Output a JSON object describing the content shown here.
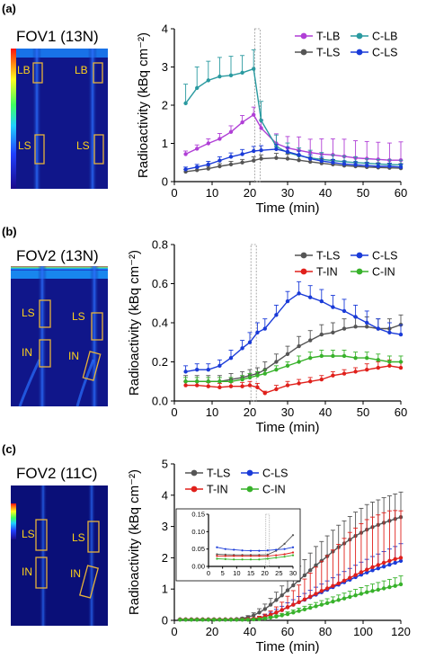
{
  "chart_data": [
    {
      "panel": "(a)",
      "fov_title": "FOV1",
      "fov_isotope": "(13N)",
      "roi_labels": [
        "LB",
        "LB",
        "LS",
        "LS"
      ],
      "type": "line",
      "xlabel": "Time (min)",
      "ylabel": "Radioactivity (kBq cm⁻²)",
      "xlim": [
        0,
        60
      ],
      "ylim": [
        0,
        4
      ],
      "xticks": [
        0,
        10,
        20,
        30,
        40,
        50,
        60
      ],
      "yticks": [
        0,
        1,
        2,
        3,
        4
      ],
      "vline": 22,
      "legend_position": "top-right",
      "x": [
        3,
        6,
        9,
        12,
        15,
        18,
        21,
        23,
        27,
        30,
        33,
        36,
        39,
        42,
        45,
        48,
        51,
        54,
        57,
        60
      ],
      "series": [
        {
          "name": "T-LB",
          "color": "#b03fd6",
          "marker": "circle",
          "values": [
            0.72,
            0.86,
            1.0,
            1.12,
            1.3,
            1.55,
            1.75,
            1.4,
            1.0,
            0.88,
            0.82,
            0.76,
            0.72,
            0.7,
            0.66,
            0.62,
            0.6,
            0.58,
            0.56,
            0.56
          ],
          "errors": [
            0.08,
            0.1,
            0.12,
            0.14,
            0.16,
            0.18,
            0.2,
            0.22,
            0.25,
            0.3,
            0.35,
            0.35,
            0.4,
            0.42,
            0.45,
            0.45,
            0.45,
            0.45,
            0.45,
            0.48
          ]
        },
        {
          "name": "C-LB",
          "color": "#2a9aa0",
          "marker": "circle",
          "values": [
            2.05,
            2.45,
            2.65,
            2.75,
            2.78,
            2.85,
            2.95,
            1.6,
            0.92,
            0.76,
            0.68,
            0.62,
            0.58,
            0.55,
            0.52,
            0.5,
            0.48,
            0.46,
            0.45,
            0.44
          ],
          "errors": [
            0.5,
            0.55,
            0.5,
            0.5,
            0.5,
            0.45,
            0.5,
            0.5,
            0.3,
            0.25,
            0.2,
            0.2,
            0.18,
            0.15,
            0.15,
            0.15,
            0.12,
            0.12,
            0.12,
            0.12
          ]
        },
        {
          "name": "T-LS",
          "color": "#555555",
          "marker": "circle",
          "values": [
            0.26,
            0.3,
            0.34,
            0.4,
            0.45,
            0.5,
            0.55,
            0.6,
            0.62,
            0.6,
            0.56,
            0.52,
            0.48,
            0.45,
            0.42,
            0.4,
            0.38,
            0.37,
            0.36,
            0.35
          ],
          "errors": [
            0.06,
            0.06,
            0.06,
            0.07,
            0.08,
            0.08,
            0.1,
            0.1,
            0.12,
            0.12,
            0.12,
            0.12,
            0.12,
            0.12,
            0.12,
            0.12,
            0.12,
            0.12,
            0.12,
            0.12
          ]
        },
        {
          "name": "C-LS",
          "color": "#1a3bd8",
          "marker": "circle",
          "values": [
            0.32,
            0.38,
            0.45,
            0.55,
            0.65,
            0.72,
            0.8,
            0.82,
            0.85,
            0.78,
            0.7,
            0.6,
            0.54,
            0.5,
            0.46,
            0.44,
            0.42,
            0.4,
            0.4,
            0.38
          ],
          "errors": [
            0.06,
            0.07,
            0.08,
            0.1,
            0.1,
            0.12,
            0.12,
            0.12,
            0.12,
            0.12,
            0.1,
            0.1,
            0.1,
            0.08,
            0.08,
            0.08,
            0.08,
            0.08,
            0.08,
            0.08
          ]
        }
      ]
    },
    {
      "panel": "(b)",
      "fov_title": "FOV2",
      "fov_isotope": "(13N)",
      "roi_labels": [
        "LS",
        "LS",
        "IN",
        "IN"
      ],
      "type": "line",
      "xlabel": "Time (min)",
      "ylabel": "Radioactivity (kBq cm⁻²)",
      "xlim": [
        0,
        60
      ],
      "ylim": [
        0,
        0.8
      ],
      "xticks": [
        0,
        10,
        20,
        30,
        40,
        50,
        60
      ],
      "yticks": [
        0,
        0.2,
        0.4,
        0.6,
        0.8
      ],
      "ytick_labels": [
        "0.0",
        "0.2",
        "0.4",
        "0.6",
        "0.8"
      ],
      "vline": 21,
      "legend_position": "top-right",
      "x": [
        3,
        6,
        9,
        12,
        15,
        18,
        20,
        22,
        24,
        27,
        30,
        33,
        36,
        39,
        42,
        45,
        48,
        51,
        54,
        57,
        60
      ],
      "series": [
        {
          "name": "T-LS",
          "color": "#555555",
          "marker": "circle",
          "values": [
            0.1,
            0.1,
            0.1,
            0.1,
            0.11,
            0.12,
            0.13,
            0.14,
            0.16,
            0.2,
            0.24,
            0.28,
            0.31,
            0.34,
            0.35,
            0.37,
            0.38,
            0.38,
            0.37,
            0.37,
            0.39
          ],
          "errors": [
            0.03,
            0.03,
            0.03,
            0.03,
            0.03,
            0.03,
            0.03,
            0.03,
            0.04,
            0.04,
            0.04,
            0.05,
            0.05,
            0.05,
            0.05,
            0.05,
            0.05,
            0.05,
            0.05,
            0.05,
            0.05
          ]
        },
        {
          "name": "C-LS",
          "color": "#1a3bd8",
          "marker": "circle",
          "values": [
            0.15,
            0.16,
            0.16,
            0.18,
            0.22,
            0.27,
            0.3,
            0.35,
            0.37,
            0.44,
            0.51,
            0.55,
            0.53,
            0.51,
            0.48,
            0.46,
            0.43,
            0.4,
            0.37,
            0.35,
            0.34
          ],
          "errors": [
            0.03,
            0.03,
            0.03,
            0.03,
            0.04,
            0.04,
            0.05,
            0.05,
            0.05,
            0.05,
            0.05,
            0.06,
            0.06,
            0.06,
            0.06,
            0.06,
            0.06,
            0.06,
            0.05,
            0.05,
            0.05
          ]
        },
        {
          "name": "T-IN",
          "color": "#e0201b",
          "marker": "circle",
          "values": [
            0.08,
            0.08,
            0.075,
            0.07,
            0.075,
            0.075,
            0.08,
            0.07,
            0.04,
            0.06,
            0.08,
            0.09,
            0.1,
            0.11,
            0.13,
            0.14,
            0.15,
            0.16,
            0.17,
            0.18,
            0.17
          ],
          "errors": [
            0.02,
            0.02,
            0.02,
            0.02,
            0.02,
            0.02,
            0.02,
            0.02,
            0.01,
            0.02,
            0.02,
            0.02,
            0.02,
            0.02,
            0.02,
            0.02,
            0.02,
            0.03,
            0.03,
            0.03,
            0.03
          ]
        },
        {
          "name": "C-IN",
          "color": "#38b22b",
          "marker": "circle",
          "values": [
            0.1,
            0.1,
            0.1,
            0.1,
            0.1,
            0.11,
            0.12,
            0.13,
            0.14,
            0.16,
            0.18,
            0.2,
            0.22,
            0.23,
            0.23,
            0.23,
            0.22,
            0.22,
            0.21,
            0.2,
            0.2
          ],
          "errors": [
            0.02,
            0.02,
            0.02,
            0.02,
            0.02,
            0.02,
            0.02,
            0.02,
            0.02,
            0.02,
            0.02,
            0.03,
            0.03,
            0.03,
            0.03,
            0.03,
            0.03,
            0.03,
            0.03,
            0.03,
            0.03
          ]
        }
      ]
    },
    {
      "panel": "(c)",
      "fov_title": "FOV2",
      "fov_isotope": "(11C)",
      "roi_labels": [
        "LS",
        "LS",
        "IN",
        "IN"
      ],
      "type": "line",
      "xlabel": "Time (min)",
      "ylabel": "Radioactivity (kBq cm⁻²)",
      "xlim": [
        0,
        120
      ],
      "ylim": [
        0,
        5
      ],
      "xticks": [
        0,
        20,
        40,
        60,
        80,
        100,
        120
      ],
      "yticks": [
        0,
        1,
        2,
        3,
        4,
        5
      ],
      "legend_position": "top-left",
      "x": [
        3,
        6,
        9,
        12,
        15,
        18,
        21,
        24,
        27,
        30,
        33,
        36,
        39,
        42,
        45,
        48,
        51,
        54,
        57,
        60,
        63,
        66,
        69,
        72,
        75,
        78,
        81,
        84,
        87,
        90,
        93,
        96,
        99,
        102,
        105,
        108,
        111,
        114,
        117,
        120
      ],
      "series": [
        {
          "name": "T-LS",
          "color": "#555555",
          "marker": "circle",
          "values": [
            0.03,
            0.03,
            0.03,
            0.03,
            0.03,
            0.03,
            0.03,
            0.03,
            0.03,
            0.03,
            0.04,
            0.06,
            0.1,
            0.16,
            0.25,
            0.36,
            0.5,
            0.65,
            0.8,
            0.96,
            1.12,
            1.28,
            1.44,
            1.6,
            1.76,
            1.9,
            2.05,
            2.2,
            2.34,
            2.46,
            2.58,
            2.7,
            2.8,
            2.9,
            2.98,
            3.05,
            3.12,
            3.18,
            3.24,
            3.3
          ],
          "errors": [
            0.01,
            0.01,
            0.01,
            0.01,
            0.01,
            0.01,
            0.01,
            0.01,
            0.01,
            0.01,
            0.02,
            0.03,
            0.05,
            0.08,
            0.12,
            0.16,
            0.2,
            0.25,
            0.3,
            0.35,
            0.4,
            0.45,
            0.5,
            0.55,
            0.6,
            0.62,
            0.65,
            0.68,
            0.7,
            0.72,
            0.74,
            0.76,
            0.78,
            0.8,
            0.8,
            0.8,
            0.8,
            0.8,
            0.8,
            0.8
          ]
        },
        {
          "name": "C-LS",
          "color": "#1a3bd8",
          "marker": "circle",
          "values": [
            0.03,
            0.03,
            0.03,
            0.03,
            0.03,
            0.03,
            0.03,
            0.03,
            0.03,
            0.03,
            0.03,
            0.03,
            0.04,
            0.05,
            0.08,
            0.12,
            0.18,
            0.25,
            0.33,
            0.42,
            0.5,
            0.58,
            0.66,
            0.74,
            0.82,
            0.9,
            0.98,
            1.06,
            1.14,
            1.22,
            1.3,
            1.38,
            1.46,
            1.53,
            1.6,
            1.66,
            1.72,
            1.78,
            1.84,
            1.9
          ],
          "errors": [
            0.01,
            0.01,
            0.01,
            0.01,
            0.01,
            0.01,
            0.01,
            0.01,
            0.01,
            0.01,
            0.01,
            0.01,
            0.02,
            0.02,
            0.04,
            0.06,
            0.08,
            0.1,
            0.12,
            0.14,
            0.16,
            0.18,
            0.2,
            0.22,
            0.24,
            0.26,
            0.28,
            0.3,
            0.32,
            0.34,
            0.36,
            0.38,
            0.4,
            0.42,
            0.44,
            0.46,
            0.48,
            0.5,
            0.52,
            0.55
          ]
        },
        {
          "name": "T-IN",
          "color": "#e0201b",
          "marker": "circle",
          "values": [
            0.03,
            0.03,
            0.03,
            0.03,
            0.03,
            0.03,
            0.03,
            0.03,
            0.03,
            0.03,
            0.03,
            0.03,
            0.04,
            0.05,
            0.08,
            0.12,
            0.18,
            0.25,
            0.33,
            0.42,
            0.5,
            0.58,
            0.67,
            0.76,
            0.85,
            0.94,
            1.02,
            1.1,
            1.18,
            1.27,
            1.36,
            1.45,
            1.54,
            1.62,
            1.7,
            1.77,
            1.84,
            1.9,
            1.96,
            2.0
          ],
          "errors": [
            0.01,
            0.01,
            0.01,
            0.01,
            0.01,
            0.01,
            0.01,
            0.01,
            0.01,
            0.01,
            0.01,
            0.01,
            0.02,
            0.03,
            0.05,
            0.08,
            0.12,
            0.18,
            0.25,
            0.35,
            0.45,
            0.55,
            0.65,
            0.75,
            0.85,
            0.95,
            1.05,
            1.15,
            1.25,
            1.35,
            1.45,
            1.5,
            1.55,
            1.6,
            1.6,
            1.6,
            1.6,
            1.6,
            1.55,
            1.5
          ]
        },
        {
          "name": "C-IN",
          "color": "#38b22b",
          "marker": "circle",
          "values": [
            0.02,
            0.02,
            0.02,
            0.02,
            0.02,
            0.02,
            0.02,
            0.02,
            0.02,
            0.02,
            0.02,
            0.02,
            0.02,
            0.03,
            0.04,
            0.06,
            0.09,
            0.12,
            0.16,
            0.2,
            0.25,
            0.3,
            0.35,
            0.4,
            0.45,
            0.5,
            0.55,
            0.6,
            0.65,
            0.7,
            0.75,
            0.8,
            0.85,
            0.9,
            0.94,
            0.98,
            1.02,
            1.06,
            1.1,
            1.15
          ],
          "errors": [
            0.01,
            0.01,
            0.01,
            0.01,
            0.01,
            0.01,
            0.01,
            0.01,
            0.01,
            0.01,
            0.01,
            0.01,
            0.01,
            0.01,
            0.02,
            0.03,
            0.04,
            0.05,
            0.06,
            0.07,
            0.08,
            0.09,
            0.1,
            0.11,
            0.12,
            0.13,
            0.14,
            0.15,
            0.16,
            0.17,
            0.18,
            0.19,
            0.2,
            0.21,
            0.22,
            0.23,
            0.24,
            0.25,
            0.26,
            0.27
          ]
        }
      ],
      "inset": {
        "xlim": [
          0,
          30
        ],
        "ylim": [
          0,
          0.15
        ],
        "xticks": [
          0,
          5,
          10,
          15,
          20,
          25,
          30
        ],
        "yticks": [
          0,
          0.05,
          0.1,
          0.15
        ],
        "ytick_labels": [
          "0.00",
          "0.05",
          "0.10",
          "0.15"
        ],
        "vline": 21,
        "x": [
          3,
          6,
          9,
          12,
          15,
          18,
          21,
          24,
          27,
          30
        ],
        "series": [
          {
            "name": "T-LS",
            "color": "#555555",
            "values": [
              0.035,
              0.034,
              0.033,
              0.033,
              0.033,
              0.033,
              0.034,
              0.045,
              0.065,
              0.09
            ]
          },
          {
            "name": "C-LS",
            "color": "#1a3bd8",
            "values": [
              0.055,
              0.05,
              0.048,
              0.046,
              0.045,
              0.045,
              0.046,
              0.048,
              0.05,
              0.055
            ]
          },
          {
            "name": "T-IN",
            "color": "#e0201b",
            "values": [
              0.03,
              0.03,
              0.03,
              0.03,
              0.03,
              0.03,
              0.03,
              0.032,
              0.035,
              0.04
            ]
          },
          {
            "name": "C-IN",
            "color": "#38b22b",
            "values": [
              0.022,
              0.021,
              0.02,
              0.02,
              0.02,
              0.02,
              0.022,
              0.025,
              0.028,
              0.032
            ]
          }
        ]
      }
    }
  ]
}
